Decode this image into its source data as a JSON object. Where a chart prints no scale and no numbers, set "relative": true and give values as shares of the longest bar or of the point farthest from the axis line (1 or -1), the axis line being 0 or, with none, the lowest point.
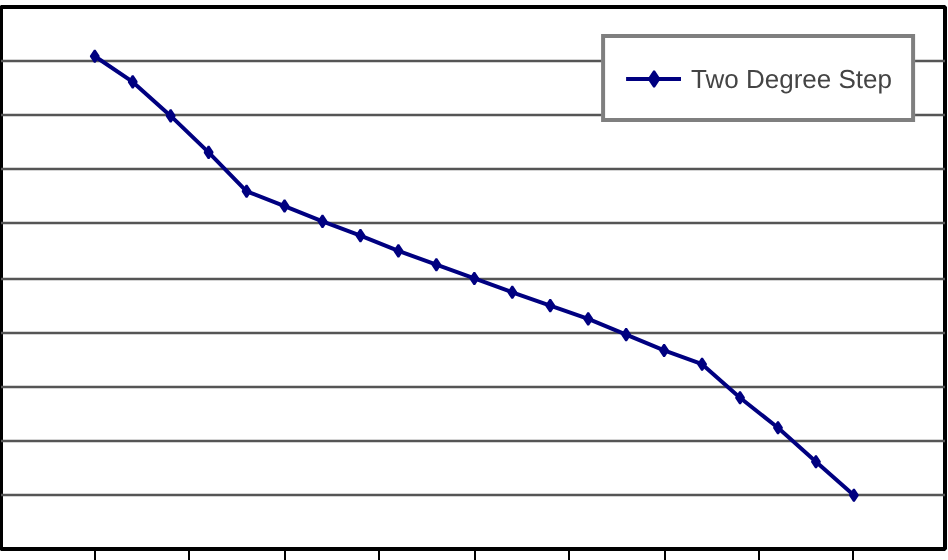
{
  "chart_data": {
    "type": "line",
    "relative": true,
    "categories": [
      null,
      null,
      null,
      null,
      null,
      null,
      null,
      null,
      null,
      null,
      null,
      null,
      null,
      null,
      null,
      null,
      null,
      null,
      null,
      null,
      null
    ],
    "series": [
      {
        "name": "Two Degree Step",
        "color": "#000080",
        "values": [
          1,
          0.948,
          0.879,
          0.805,
          0.726,
          0.696,
          0.665,
          0.636,
          0.605,
          0.577,
          0.549,
          0.521,
          0.494,
          0.467,
          0.435,
          0.403,
          0.375,
          0.307,
          0.246,
          0.177,
          0.109
        ]
      }
    ],
    "marker": "diamond",
    "line_style": "solid",
    "grid": "y",
    "legend": "top right",
    "tick_labels": false
  }
}
